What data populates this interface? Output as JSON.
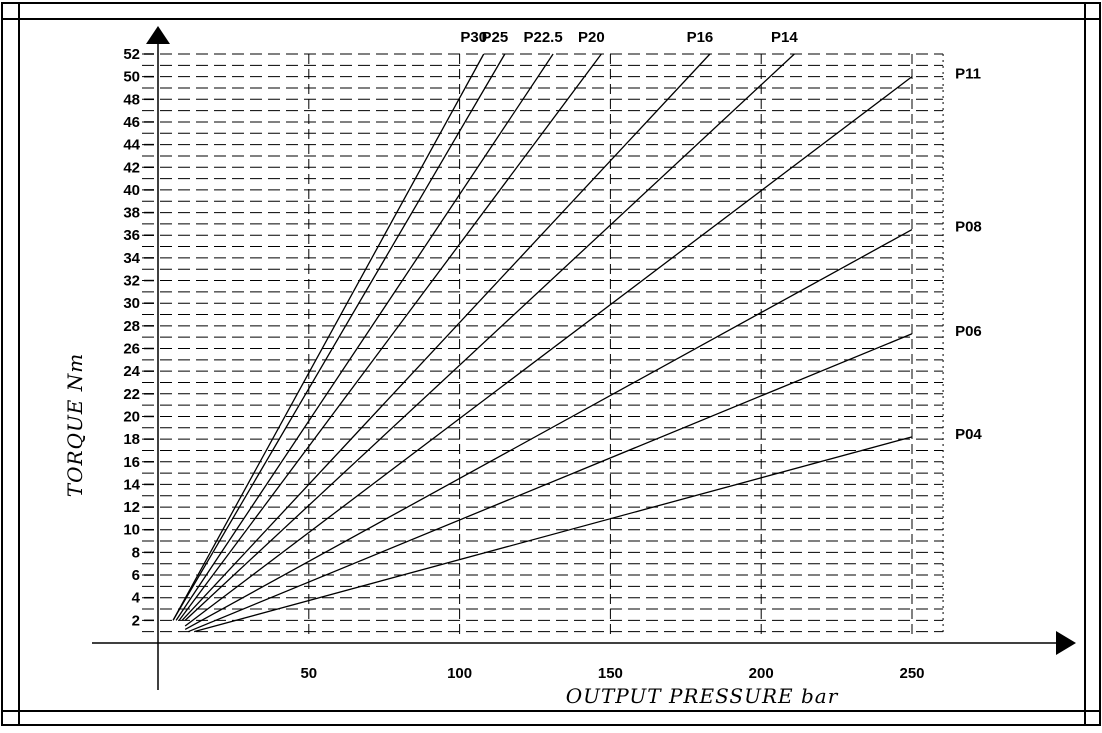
{
  "chart_data": {
    "type": "line",
    "title": "",
    "xlabel": "OUTPUT PRESSURE bar",
    "ylabel": "TORQUE Nm",
    "xlim": [
      0,
      255
    ],
    "ylim": [
      0,
      52
    ],
    "x_ticks": [
      50,
      100,
      150,
      200,
      250
    ],
    "y_ticks": [
      2,
      4,
      6,
      8,
      10,
      12,
      14,
      16,
      18,
      20,
      22,
      24,
      26,
      28,
      30,
      32,
      34,
      36,
      38,
      40,
      42,
      44,
      46,
      48,
      50,
      52
    ],
    "grid": true,
    "series": [
      {
        "name": "P30",
        "x": [
          5,
          108
        ],
        "y": [
          2,
          52
        ]
      },
      {
        "name": "P25",
        "x": [
          5,
          115
        ],
        "y": [
          2,
          52
        ]
      },
      {
        "name": "P22.5",
        "x": [
          6,
          131
        ],
        "y": [
          2,
          52
        ]
      },
      {
        "name": "P20",
        "x": [
          7,
          147
        ],
        "y": [
          2,
          52
        ]
      },
      {
        "name": "P16",
        "x": [
          8,
          183
        ],
        "y": [
          2,
          52
        ]
      },
      {
        "name": "P14",
        "x": [
          9,
          211
        ],
        "y": [
          2,
          52
        ]
      },
      {
        "name": "P11",
        "x": [
          9,
          250
        ],
        "y": [
          1.5,
          50
        ]
      },
      {
        "name": "P08",
        "x": [
          9,
          250
        ],
        "y": [
          1.2,
          36.5
        ]
      },
      {
        "name": "P06",
        "x": [
          10,
          250
        ],
        "y": [
          1,
          27.3
        ]
      },
      {
        "name": "P04",
        "x": [
          12,
          250
        ],
        "y": [
          1,
          18.2
        ]
      }
    ]
  }
}
